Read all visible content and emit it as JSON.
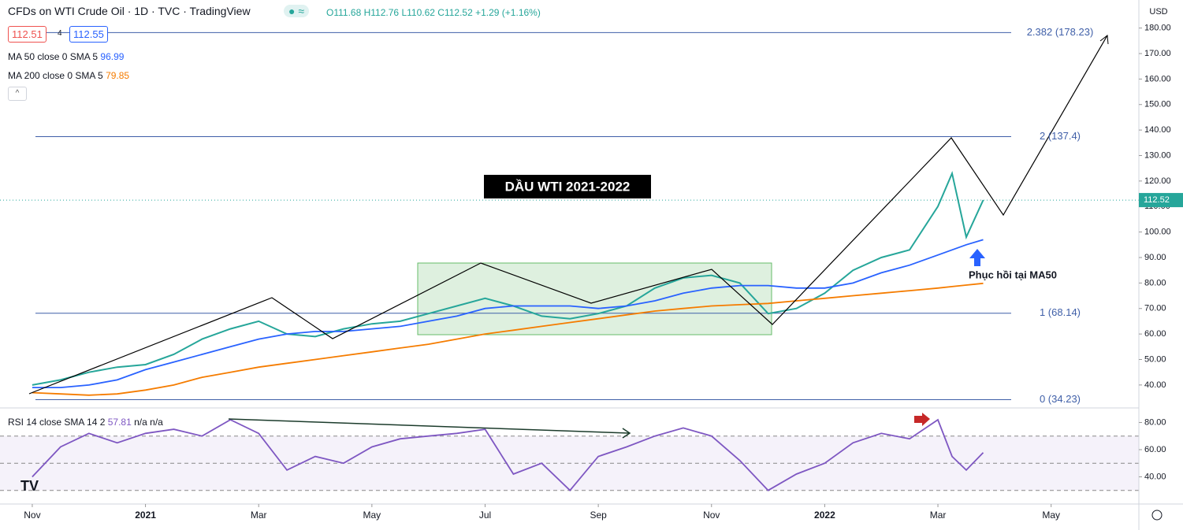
{
  "header": {
    "title": "CFDs on WTI Crude Oil · 1D · TVC · TradingView",
    "ohlc": [
      "O111.68",
      "H112.76",
      "L110.62",
      "C112.52",
      "+1.29 (+1.16%)"
    ],
    "bid": "112.51",
    "spread": "4",
    "ask": "112.55",
    "currency": "USD"
  },
  "chart_data": [
    {
      "type": "line",
      "annotations": [
        "DẦU WTI 2021-2022",
        "Phục hồi tại MA50"
      ],
      "x": [
        0,
        0.5,
        1,
        1.5,
        2,
        2.5,
        3,
        3.5,
        4,
        4.5,
        5,
        5.5,
        6,
        6.5,
        7,
        7.5,
        8,
        8.5,
        9,
        9.5,
        10,
        10.5,
        11,
        11.5,
        12,
        12.5,
        13,
        13.5,
        14,
        14.5,
        15,
        15.5,
        16,
        16.25,
        16.5,
        16.8
      ],
      "series": [
        {
          "color": "#26a69a",
          "values": [
            40,
            42,
            45,
            47,
            48,
            52,
            58,
            62,
            65,
            60,
            59,
            62,
            64,
            65,
            68,
            71,
            74,
            71,
            67,
            66,
            68,
            71,
            78,
            82,
            83,
            80,
            68,
            70,
            76,
            85,
            90,
            93,
            110,
            123,
            98,
            112.52
          ]
        },
        {
          "name": "MA 50 close 0 SMA 5",
          "color": "#2962ff",
          "values": [
            39,
            39,
            40,
            42,
            46,
            49,
            52,
            55,
            58,
            60,
            61,
            61,
            62,
            63,
            65,
            67,
            70,
            71,
            71,
            71,
            70,
            71,
            73,
            76,
            78,
            79,
            79,
            78,
            78,
            80,
            84,
            87,
            91,
            93,
            95,
            96.99
          ]
        },
        {
          "name": "MA 200 close 0 SMA 5",
          "color": "#f57c00",
          "values": [
            37,
            36.5,
            36,
            36.5,
            38,
            40,
            43,
            45,
            47,
            48.5,
            50,
            51.5,
            53,
            54.5,
            56,
            58,
            60,
            61.5,
            63,
            64.5,
            66,
            67.5,
            69,
            70,
            71,
            71.5,
            72,
            73,
            74,
            75,
            76,
            77,
            78,
            78.6,
            79.2,
            79.85
          ]
        }
      ],
      "xlim": [
        -0.57,
        19.55
      ],
      "xticks": [
        {
          "value": 0,
          "label": "Nov"
        },
        {
          "value": 2,
          "label": "2021"
        },
        {
          "value": 4,
          "label": "Mar"
        },
        {
          "value": 6,
          "label": "May"
        },
        {
          "value": 8,
          "label": "Jul"
        },
        {
          "value": 10,
          "label": "Sep"
        },
        {
          "value": 12,
          "label": "Nov"
        },
        {
          "value": 14,
          "label": "2022"
        },
        {
          "value": 16,
          "label": "Mar"
        },
        {
          "value": 18,
          "label": "May"
        }
      ],
      "ylim": [
        31,
        191
      ],
      "yticks": [
        {
          "value": 40,
          "label": "40.00"
        },
        {
          "value": 50,
          "label": "50.00"
        },
        {
          "value": 60,
          "label": "60.00"
        },
        {
          "value": 70,
          "label": "70.00"
        },
        {
          "value": 80,
          "label": "80.00"
        },
        {
          "value": 90,
          "label": "90.00"
        },
        {
          "value": 100,
          "label": "100.00"
        },
        {
          "value": 110,
          "label": "110.00"
        },
        {
          "value": 120,
          "label": "120.00"
        },
        {
          "value": 130,
          "label": "130.00"
        },
        {
          "value": 140,
          "label": "140.00"
        },
        {
          "value": 150,
          "label": "150.00"
        },
        {
          "value": 160,
          "label": "160.00"
        },
        {
          "value": 170,
          "label": "170.00"
        },
        {
          "value": 180,
          "label": "180.00"
        }
      ],
      "levels": [
        {
          "value": 34.23,
          "label": "0 (34.23)"
        },
        {
          "value": 68.14,
          "label": "1 (68.14)"
        },
        {
          "value": 137.4,
          "label": "2 (137.4)"
        },
        {
          "value": 178.23,
          "label": "2.382 (178.23)"
        }
      ],
      "levels_color": "#3f5fa8"
    },
    {
      "type": "line",
      "title": "RSI 14 close SMA 14 2",
      "na": [
        "n/a",
        "n/a"
      ],
      "x": [
        0,
        0.5,
        1,
        1.5,
        2,
        2.5,
        3,
        3.5,
        4,
        4.5,
        5,
        5.5,
        6,
        6.5,
        7,
        7.5,
        8,
        8.5,
        9,
        9.5,
        10,
        10.5,
        11,
        11.5,
        12,
        12.5,
        13,
        13.5,
        14,
        14.5,
        15,
        15.5,
        16,
        16.25,
        16.5,
        16.8
      ],
      "series": [
        {
          "color": "#7e57c2",
          "values": [
            40,
            62,
            72,
            65,
            72,
            75,
            70,
            82,
            72,
            45,
            55,
            50,
            62,
            68,
            70,
            72,
            75,
            42,
            50,
            30,
            55,
            62,
            70,
            76,
            70,
            52,
            30,
            42,
            50,
            65,
            72,
            68,
            82,
            55,
            45,
            57.81
          ]
        }
      ],
      "xlim": [
        -0.57,
        19.55
      ],
      "ylim": [
        20,
        90.7
      ],
      "yticks": [
        {
          "value": 40,
          "label": "40.00"
        },
        {
          "value": 60,
          "label": "60.00"
        },
        {
          "value": 80,
          "label": "80.00"
        }
      ],
      "guides": [
        30,
        50,
        70
      ]
    }
  ]
}
